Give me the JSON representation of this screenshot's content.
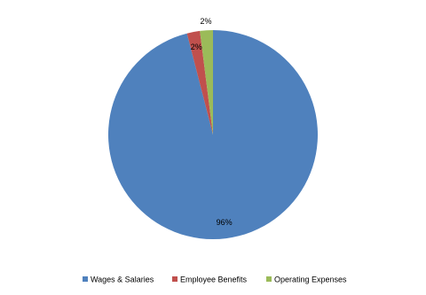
{
  "chart_data": {
    "type": "pie",
    "categories": [
      "Wages & Salaries",
      "Employee Benefits",
      "Operating Expenses"
    ],
    "values": [
      96,
      2,
      2
    ],
    "value_labels": [
      "96%",
      "2%",
      "2%"
    ],
    "colors": [
      "#4f81bd",
      "#c0504d",
      "#9bbb59"
    ],
    "legend": "bottom"
  }
}
